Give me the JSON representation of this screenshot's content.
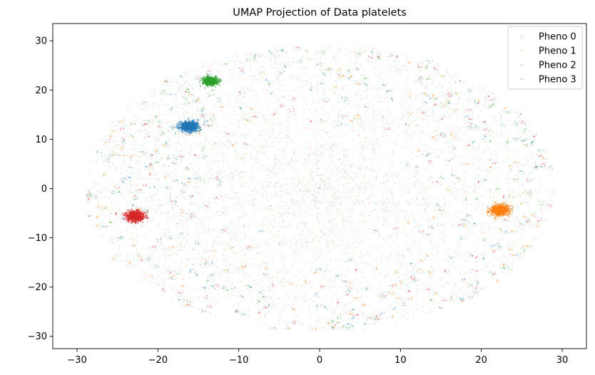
{
  "chart_data": {
    "type": "scatter",
    "title": "UMAP Projection of Data platelets",
    "xlabel": "",
    "ylabel": "",
    "xlim": [
      -33,
      33
    ],
    "ylim": [
      -32.5,
      33.5
    ],
    "xticks": [
      -30,
      -20,
      -10,
      0,
      10,
      20,
      30
    ],
    "yticks": [
      -30,
      -20,
      -10,
      0,
      10,
      20,
      30
    ],
    "xtick_labels": [
      "−30",
      "−20",
      "−10",
      "0",
      "10",
      "20",
      "30"
    ],
    "ytick_labels": [
      "−30",
      "−20",
      "−10",
      "0",
      "10",
      "20",
      "30"
    ],
    "grid": false,
    "legend_position": "top-right",
    "series": [
      {
        "name": "Pheno 0",
        "color": "#1f77b4",
        "dense_clusters": [
          {
            "center": [
              -16.2,
              12.6
            ],
            "spread": [
              1.1,
              0.6
            ]
          }
        ]
      },
      {
        "name": "Pheno 1",
        "color": "#ff7f0e",
        "dense_clusters": [
          {
            "center": [
              22.3,
              -4.4
            ],
            "spread": [
              1.0,
              0.6
            ]
          }
        ]
      },
      {
        "name": "Pheno 2",
        "color": "#2ca02c",
        "dense_clusters": [
          {
            "center": [
              -13.5,
              21.8
            ],
            "spread": [
              0.8,
              0.45
            ]
          }
        ]
      },
      {
        "name": "Pheno 3",
        "color": "#d62728",
        "dense_clusters": [
          {
            "center": [
              -22.8,
              -5.6
            ],
            "spread": [
              1.0,
              0.6
            ]
          }
        ]
      }
    ],
    "background_cloud": {
      "center": [
        0,
        0
      ],
      "radius": [
        29,
        29
      ]
    }
  }
}
